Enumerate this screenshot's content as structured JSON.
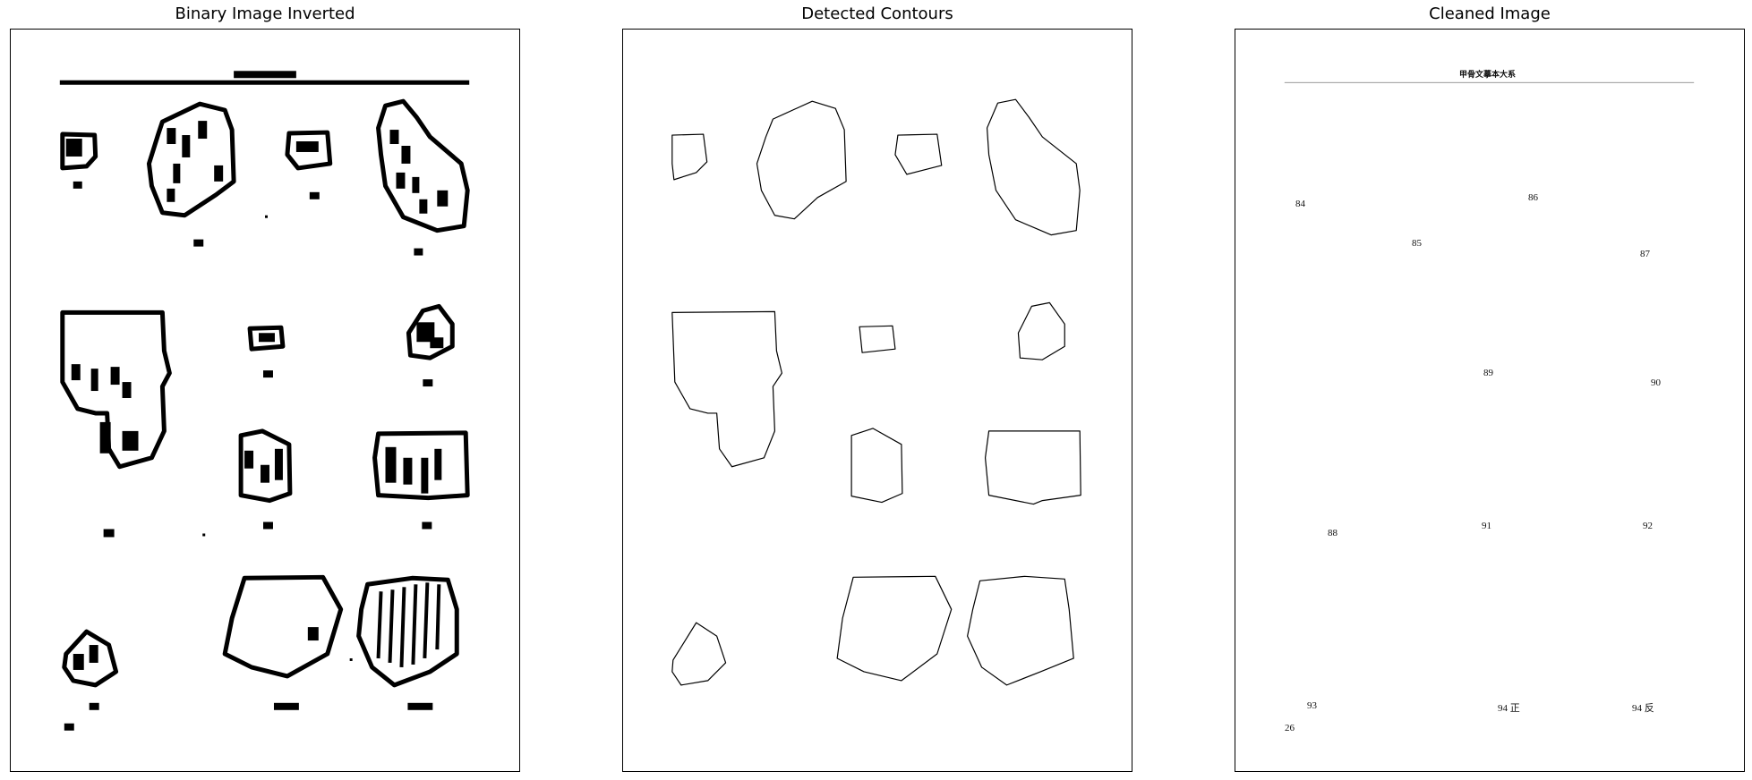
{
  "panels": [
    {
      "title": "Binary Image Inverted"
    },
    {
      "title": "Detected Contours"
    },
    {
      "title": "Cleaned Image"
    }
  ],
  "cleaned": {
    "header": "甲骨文摹本大系",
    "labels": [
      "84",
      "85",
      "86",
      "87",
      "89",
      "90",
      "88",
      "91",
      "92",
      "93",
      "94 正",
      "94 反",
      "26"
    ]
  }
}
